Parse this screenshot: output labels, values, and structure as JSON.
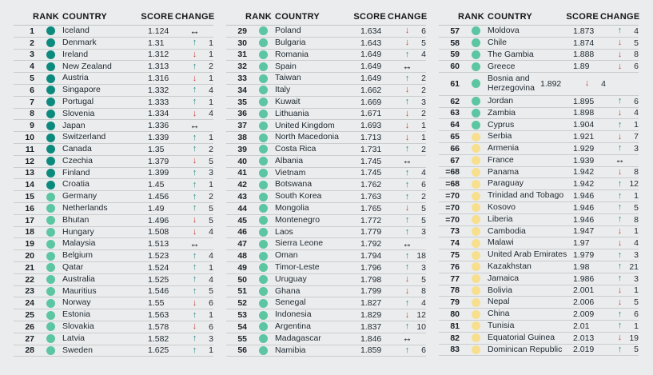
{
  "columns": {
    "rank": "RANK",
    "country": "COUNTRY",
    "score": "SCORE",
    "change": "CHANGE"
  },
  "colors": {
    "page_background": "#ebeced",
    "tier_very_high": "#0d8a7e",
    "tier_high": "#5cc5a2",
    "tier_medium": "#f7df8e",
    "arrow_up": "#2b8c85",
    "arrow_down": "#c7423a",
    "arrow_steady": "#141414",
    "separator": "#c9cdcd"
  },
  "icons": {
    "up_arrow": "↑",
    "down_arrow": "↓",
    "steady_arrow": "↔",
    "tier_dot": "circle"
  },
  "tables": [
    {
      "rows": [
        {
          "rank": "1",
          "country": "Iceland",
          "score": "1.124",
          "tier": "very_high",
          "direction": "steady",
          "change": ""
        },
        {
          "rank": "2",
          "country": "Denmark",
          "score": "1.31",
          "tier": "very_high",
          "direction": "up",
          "change": "1"
        },
        {
          "rank": "3",
          "country": "Ireland",
          "score": "1.312",
          "tier": "very_high",
          "direction": "down",
          "change": "1"
        },
        {
          "rank": "4",
          "country": "New Zealand",
          "score": "1.313",
          "tier": "very_high",
          "direction": "up",
          "change": "2"
        },
        {
          "rank": "5",
          "country": "Austria",
          "score": "1.316",
          "tier": "very_high",
          "direction": "down",
          "change": "1"
        },
        {
          "rank": "6",
          "country": "Singapore",
          "score": "1.332",
          "tier": "very_high",
          "direction": "up",
          "change": "4"
        },
        {
          "rank": "7",
          "country": "Portugal",
          "score": "1.333",
          "tier": "very_high",
          "direction": "up",
          "change": "1"
        },
        {
          "rank": "8",
          "country": "Slovenia",
          "score": "1.334",
          "tier": "very_high",
          "direction": "down",
          "change": "4"
        },
        {
          "rank": "9",
          "country": "Japan",
          "score": "1.336",
          "tier": "very_high",
          "direction": "steady",
          "change": ""
        },
        {
          "rank": "10",
          "country": "Switzerland",
          "score": "1.339",
          "tier": "very_high",
          "direction": "up",
          "change": "1"
        },
        {
          "rank": "11",
          "country": "Canada",
          "score": "1.35",
          "tier": "very_high",
          "direction": "up",
          "change": "2"
        },
        {
          "rank": "12",
          "country": "Czechia",
          "score": "1.379",
          "tier": "very_high",
          "direction": "down",
          "change": "5"
        },
        {
          "rank": "13",
          "country": "Finland",
          "score": "1.399",
          "tier": "very_high",
          "direction": "up",
          "change": "3"
        },
        {
          "rank": "14",
          "country": "Croatia",
          "score": "1.45",
          "tier": "very_high",
          "direction": "up",
          "change": "1"
        },
        {
          "rank": "15",
          "country": "Germany",
          "score": "1.456",
          "tier": "high",
          "direction": "up",
          "change": "2"
        },
        {
          "rank": "16",
          "country": "Netherlands",
          "score": "1.49",
          "tier": "high",
          "direction": "up",
          "change": "5"
        },
        {
          "rank": "17",
          "country": "Bhutan",
          "score": "1.496",
          "tier": "high",
          "direction": "down",
          "change": "5"
        },
        {
          "rank": "18",
          "country": "Hungary",
          "score": "1.508",
          "tier": "high",
          "direction": "down",
          "change": "4"
        },
        {
          "rank": "19",
          "country": "Malaysia",
          "score": "1.513",
          "tier": "high",
          "direction": "steady",
          "change": ""
        },
        {
          "rank": "20",
          "country": "Belgium",
          "score": "1.523",
          "tier": "high",
          "direction": "up",
          "change": "4"
        },
        {
          "rank": "21",
          "country": "Qatar",
          "score": "1.524",
          "tier": "high",
          "direction": "up",
          "change": "1"
        },
        {
          "rank": "22",
          "country": "Australia",
          "score": "1.525",
          "tier": "high",
          "direction": "up",
          "change": "4"
        },
        {
          "rank": "23",
          "country": "Mauritius",
          "score": "1.546",
          "tier": "high",
          "direction": "up",
          "change": "5"
        },
        {
          "rank": "24",
          "country": "Norway",
          "score": "1.55",
          "tier": "high",
          "direction": "down",
          "change": "6"
        },
        {
          "rank": "25",
          "country": "Estonia",
          "score": "1.563",
          "tier": "high",
          "direction": "up",
          "change": "1"
        },
        {
          "rank": "26",
          "country": "Slovakia",
          "score": "1.578",
          "tier": "high",
          "direction": "down",
          "change": "6"
        },
        {
          "rank": "27",
          "country": "Latvia",
          "score": "1.582",
          "tier": "high",
          "direction": "up",
          "change": "3"
        },
        {
          "rank": "28",
          "country": "Sweden",
          "score": "1.625",
          "tier": "high",
          "direction": "up",
          "change": "1"
        }
      ]
    },
    {
      "rows": [
        {
          "rank": "29",
          "country": "Poland",
          "score": "1.634",
          "tier": "high",
          "direction": "down",
          "change": "6"
        },
        {
          "rank": "30",
          "country": "Bulgaria",
          "score": "1.643",
          "tier": "high",
          "direction": "down",
          "change": "5"
        },
        {
          "rank": "31",
          "country": "Romania",
          "score": "1.649",
          "tier": "high",
          "direction": "up",
          "change": "4"
        },
        {
          "rank": "32",
          "country": "Spain",
          "score": "1.649",
          "tier": "high",
          "direction": "steady",
          "change": ""
        },
        {
          "rank": "33",
          "country": "Taiwan",
          "score": "1.649",
          "tier": "high",
          "direction": "up",
          "change": "2"
        },
        {
          "rank": "34",
          "country": "Italy",
          "score": "1.662",
          "tier": "high",
          "direction": "down",
          "change": "2"
        },
        {
          "rank": "35",
          "country": "Kuwait",
          "score": "1.669",
          "tier": "high",
          "direction": "up",
          "change": "3"
        },
        {
          "rank": "36",
          "country": "Lithuania",
          "score": "1.671",
          "tier": "high",
          "direction": "down",
          "change": "2"
        },
        {
          "rank": "37",
          "country": "United Kingdom",
          "score": "1.693",
          "tier": "high",
          "direction": "down",
          "change": "1"
        },
        {
          "rank": "38",
          "country": "North Macedonia",
          "score": "1.713",
          "tier": "high",
          "direction": "down",
          "change": "1"
        },
        {
          "rank": "39",
          "country": "Costa Rica",
          "score": "1.731",
          "tier": "high",
          "direction": "up",
          "change": "2"
        },
        {
          "rank": "40",
          "country": "Albania",
          "score": "1.745",
          "tier": "high",
          "direction": "steady",
          "change": ""
        },
        {
          "rank": "41",
          "country": "Vietnam",
          "score": "1.745",
          "tier": "high",
          "direction": "up",
          "change": "4"
        },
        {
          "rank": "42",
          "country": "Botswana",
          "score": "1.762",
          "tier": "high",
          "direction": "up",
          "change": "6"
        },
        {
          "rank": "43",
          "country": "South Korea",
          "score": "1.763",
          "tier": "high",
          "direction": "up",
          "change": "2"
        },
        {
          "rank": "44",
          "country": "Mongolia",
          "score": "1.765",
          "tier": "high",
          "direction": "down",
          "change": "5"
        },
        {
          "rank": "45",
          "country": "Montenegro",
          "score": "1.772",
          "tier": "high",
          "direction": "up",
          "change": "5"
        },
        {
          "rank": "46",
          "country": "Laos",
          "score": "1.779",
          "tier": "high",
          "direction": "up",
          "change": "3"
        },
        {
          "rank": "47",
          "country": "Sierra Leone",
          "score": "1.792",
          "tier": "high",
          "direction": "steady",
          "change": ""
        },
        {
          "rank": "48",
          "country": "Oman",
          "score": "1.794",
          "tier": "high",
          "direction": "up",
          "change": "18"
        },
        {
          "rank": "49",
          "country": "Timor-Leste",
          "score": "1.796",
          "tier": "high",
          "direction": "up",
          "change": "3"
        },
        {
          "rank": "50",
          "country": "Uruguay",
          "score": "1.798",
          "tier": "high",
          "direction": "down",
          "change": "5"
        },
        {
          "rank": "51",
          "country": "Ghana",
          "score": "1.799",
          "tier": "high",
          "direction": "down",
          "change": "8"
        },
        {
          "rank": "52",
          "country": "Senegal",
          "score": "1.827",
          "tier": "high",
          "direction": "up",
          "change": "4"
        },
        {
          "rank": "53",
          "country": "Indonesia",
          "score": "1.829",
          "tier": "high",
          "direction": "down",
          "change": "12"
        },
        {
          "rank": "54",
          "country": "Argentina",
          "score": "1.837",
          "tier": "high",
          "direction": "up",
          "change": "10"
        },
        {
          "rank": "55",
          "country": "Madagascar",
          "score": "1.846",
          "tier": "high",
          "direction": "steady",
          "change": ""
        },
        {
          "rank": "56",
          "country": "Namibia",
          "score": "1.859",
          "tier": "high",
          "direction": "up",
          "change": "6"
        }
      ]
    },
    {
      "rows": [
        {
          "rank": "57",
          "country": "Moldova",
          "score": "1.873",
          "tier": "high",
          "direction": "up",
          "change": "4"
        },
        {
          "rank": "58",
          "country": "Chile",
          "score": "1.874",
          "tier": "high",
          "direction": "down",
          "change": "5"
        },
        {
          "rank": "59",
          "country": "The Gambia",
          "score": "1.888",
          "tier": "high",
          "direction": "down",
          "change": "8"
        },
        {
          "rank": "60",
          "country": "Greece",
          "score": "1.89",
          "tier": "high",
          "direction": "down",
          "change": "6"
        },
        {
          "rank": "61",
          "country": "Bosnia and Herzegovina",
          "score": "1.892",
          "tier": "high",
          "direction": "down",
          "change": "4",
          "wrap": true
        },
        {
          "rank": "62",
          "country": "Jordan",
          "score": "1.895",
          "tier": "high",
          "direction": "up",
          "change": "6"
        },
        {
          "rank": "63",
          "country": "Zambia",
          "score": "1.898",
          "tier": "high",
          "direction": "down",
          "change": "4"
        },
        {
          "rank": "64",
          "country": "Cyprus",
          "score": "1.904",
          "tier": "high",
          "direction": "up",
          "change": "1"
        },
        {
          "rank": "65",
          "country": "Serbia",
          "score": "1.921",
          "tier": "medium",
          "direction": "down",
          "change": "7"
        },
        {
          "rank": "66",
          "country": "Armenia",
          "score": "1.929",
          "tier": "medium",
          "direction": "up",
          "change": "3"
        },
        {
          "rank": "67",
          "country": "France",
          "score": "1.939",
          "tier": "medium",
          "direction": "steady",
          "change": ""
        },
        {
          "rank": "=68",
          "country": "Panama",
          "score": "1.942",
          "tier": "medium",
          "direction": "down",
          "change": "8"
        },
        {
          "rank": "=68",
          "country": "Paraguay",
          "score": "1.942",
          "tier": "medium",
          "direction": "up",
          "change": "12"
        },
        {
          "rank": "=70",
          "country": "Trinidad and Tobago",
          "score": "1.946",
          "tier": "medium",
          "direction": "up",
          "change": "1"
        },
        {
          "rank": "=70",
          "country": "Kosovo",
          "score": "1.946",
          "tier": "medium",
          "direction": "up",
          "change": "5"
        },
        {
          "rank": "=70",
          "country": "Liberia",
          "score": "1.946",
          "tier": "medium",
          "direction": "up",
          "change": "8"
        },
        {
          "rank": "73",
          "country": "Cambodia",
          "score": "1.947",
          "tier": "medium",
          "direction": "down",
          "change": "1"
        },
        {
          "rank": "74",
          "country": "Malawi",
          "score": "1.97",
          "tier": "medium",
          "direction": "down",
          "change": "4"
        },
        {
          "rank": "75",
          "country": "United Arab Emirates",
          "score": "1.979",
          "tier": "medium",
          "direction": "up",
          "change": "3"
        },
        {
          "rank": "76",
          "country": "Kazakhstan",
          "score": "1.98",
          "tier": "medium",
          "direction": "up",
          "change": "21"
        },
        {
          "rank": "77",
          "country": "Jamaica",
          "score": "1.986",
          "tier": "medium",
          "direction": "up",
          "change": "3"
        },
        {
          "rank": "78",
          "country": "Bolivia",
          "score": "2.001",
          "tier": "medium",
          "direction": "down",
          "change": "1"
        },
        {
          "rank": "79",
          "country": "Nepal",
          "score": "2.006",
          "tier": "medium",
          "direction": "down",
          "change": "5"
        },
        {
          "rank": "80",
          "country": "China",
          "score": "2.009",
          "tier": "medium",
          "direction": "up",
          "change": "6"
        },
        {
          "rank": "81",
          "country": "Tunisia",
          "score": "2.01",
          "tier": "medium",
          "direction": "up",
          "change": "1"
        },
        {
          "rank": "82",
          "country": "Equatorial Guinea",
          "score": "2.013",
          "tier": "medium",
          "direction": "down",
          "change": "19"
        },
        {
          "rank": "83",
          "country": "Dominican Republic",
          "score": "2.019",
          "tier": "medium",
          "direction": "up",
          "change": "5"
        }
      ]
    }
  ]
}
